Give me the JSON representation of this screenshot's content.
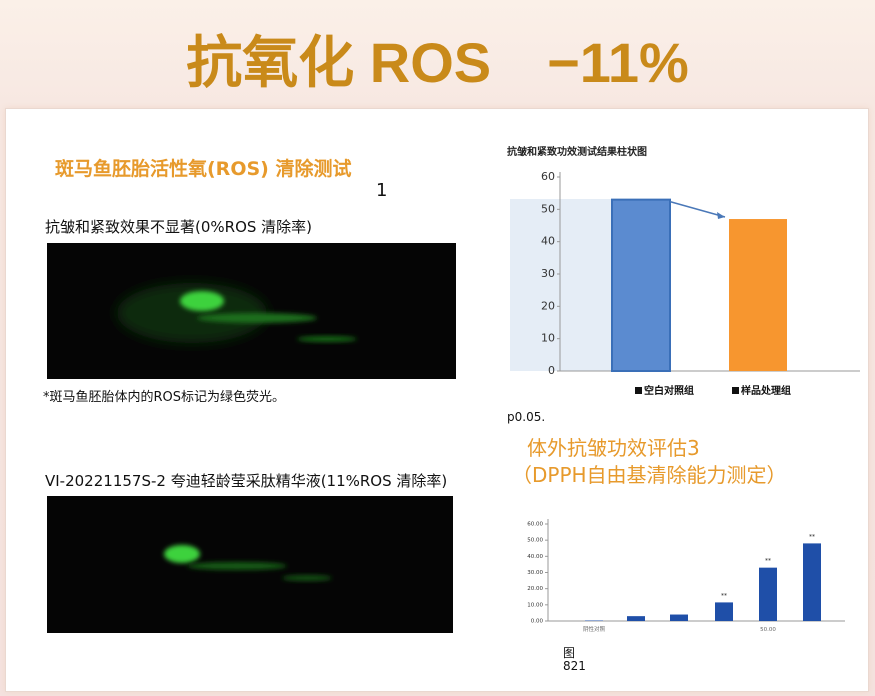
{
  "header": {
    "title": "抗氧化 ROS　−11%"
  },
  "left": {
    "heading": "斑马鱼胚胎活性氧(ROS) 清除测试",
    "index": "1",
    "control_text": "抗皱和紧致效果不显著(0%ROS 清除率)",
    "caption": "*斑马鱼胚胎体内的ROS标记为绿色荧光。",
    "sample_text": "VI-20221157S-2 夸迪轻龄莹采肽精华液(11%ROS 清除率)"
  },
  "chart_data": [
    {
      "type": "bar",
      "title": "抗皱和紧致功效测试结果柱状图",
      "categories": [
        "空白对照组",
        "样品处理组"
      ],
      "values": [
        53,
        47
      ],
      "colors": [
        "#5b8bd0",
        "#f7962f"
      ],
      "ylim": [
        0,
        60
      ],
      "yticks": [
        0,
        10,
        20,
        30,
        40,
        50,
        60
      ],
      "legend": "bottom"
    },
    {
      "type": "bar",
      "categories": [
        "阴性对照",
        null,
        null,
        null,
        "50.00",
        null
      ],
      "values": [
        0.3,
        3,
        4,
        11.5,
        33,
        48
      ],
      "significance": [
        null,
        null,
        null,
        "**",
        "**",
        "**"
      ],
      "color": "#1f4fa8",
      "ylim": [
        0,
        60
      ],
      "yticks": [
        {
          "value": 0,
          "label": "0.00"
        },
        {
          "value": 10,
          "label": "10.00"
        },
        {
          "value": 20,
          "label": "20.00"
        },
        {
          "value": 30,
          "label": "30.00"
        },
        {
          "value": 40,
          "label": "40.00"
        },
        {
          "value": 50,
          "label": "50.00"
        },
        {
          "value": 60,
          "label": "60.00"
        }
      ]
    }
  ],
  "notes": {
    "p_value": "p0.05.",
    "section_heading": "体外抗皱功效评估3",
    "section_subheading": "（DPPH自由基清除能力测定）",
    "figure_label": "图",
    "figure_number": "821"
  }
}
